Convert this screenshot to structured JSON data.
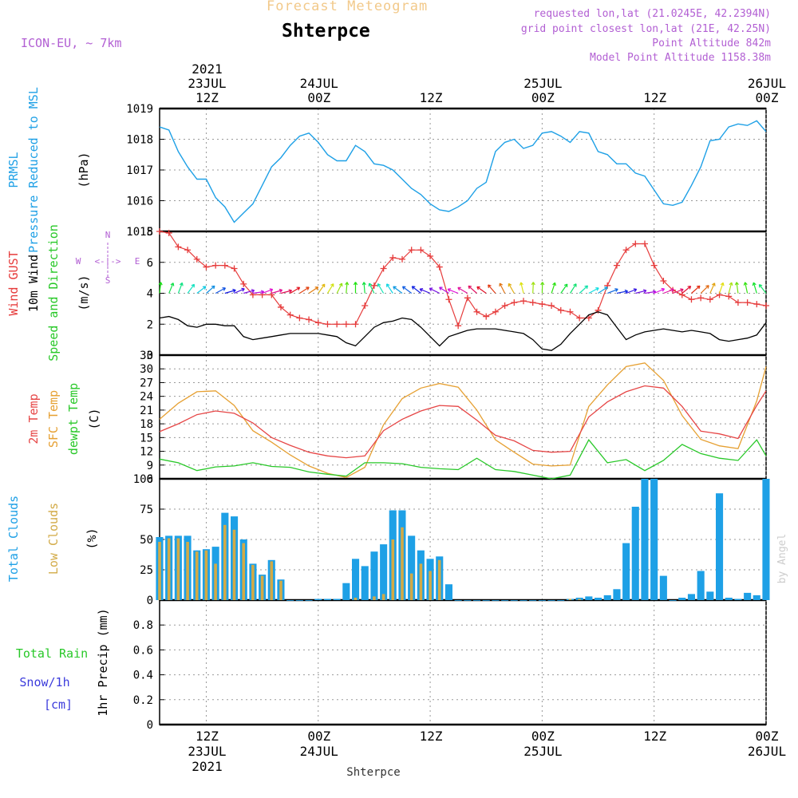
{
  "header": {
    "product": "Forecast Meteogram",
    "location": "Shterpce",
    "model": "ICON-EU, ~ 7km",
    "requested": "requested lon,lat (21.0245E, 42.2394N)",
    "gridpoint": "grid point closest lon,lat (21E, 42.25N)",
    "point_altitude": "Point Altitude 842m",
    "model_altitude": "Model Point Altitude 1158.38m",
    "signature": "by Angel",
    "footer_location": "Shterpce"
  },
  "colors": {
    "pressure": "#1ea0e6",
    "gust": "#e63c3c",
    "wind": "#000000",
    "temp": "#e64646",
    "sfc_temp": "#e6a032",
    "dewpt": "#28c828",
    "total_clouds": "#1ea0e6",
    "low_clouds": "#d2aa46",
    "rain": "#28c828",
    "snow": "#3c3cdc",
    "label_purple": "#b25fd3"
  },
  "time_axis": {
    "top": [
      {
        "line1": "2021",
        "line2": "23JUL",
        "line3": "12Z"
      },
      {
        "line1": "",
        "line2": "24JUL",
        "line3": "00Z"
      },
      {
        "line1": "",
        "line2": "",
        "line3": "12Z"
      },
      {
        "line1": "",
        "line2": "25JUL",
        "line3": "00Z"
      },
      {
        "line1": "",
        "line2": "",
        "line3": "12Z"
      },
      {
        "line1": "",
        "line2": "26JUL",
        "line3": "00Z"
      }
    ],
    "bottom": [
      {
        "line1": "12Z",
        "line2": "23JUL",
        "line3": "2021"
      },
      {
        "line1": "00Z",
        "line2": "24JUL",
        "line3": ""
      },
      {
        "line1": "12Z",
        "line2": "",
        "line3": ""
      },
      {
        "line1": "00Z",
        "line2": "25JUL",
        "line3": ""
      },
      {
        "line1": "12Z",
        "line2": "",
        "line3": ""
      },
      {
        "line1": "00Z",
        "line2": "26JUL",
        "line3": ""
      }
    ]
  },
  "chart_data": [
    {
      "type": "line",
      "ylabels": [
        "PRMSL",
        "Pressure Reduced to MSL"
      ],
      "unit": "(hPa)",
      "ylim": [
        1015,
        1019
      ],
      "yticks": [
        1015,
        1016,
        1017,
        1018,
        1019
      ],
      "x_hours": [
        7,
        72
      ],
      "series": [
        {
          "x": [
            7,
            8,
            9,
            10,
            11,
            12,
            13,
            14,
            15,
            16,
            17,
            18,
            19,
            20,
            21,
            22,
            23,
            24,
            25,
            26,
            27,
            28,
            29,
            30,
            31,
            32,
            33,
            34,
            35,
            36,
            37,
            38,
            39,
            40,
            41,
            42,
            43,
            44,
            45,
            46,
            47,
            48,
            49,
            50,
            51,
            52,
            53,
            54,
            55,
            56,
            57,
            58,
            59,
            60,
            61,
            62,
            63,
            64,
            65,
            66,
            67,
            68,
            69,
            70,
            71,
            72
          ],
          "values": [
            1018.4,
            1018.3,
            1017.6,
            1017.1,
            1016.7,
            1016.7,
            1016.1,
            1015.8,
            1015.3,
            1015.6,
            1015.9,
            1016.5,
            1017.1,
            1017.4,
            1017.8,
            1018.1,
            1018.2,
            1017.9,
            1017.5,
            1017.3,
            1017.3,
            1017.8,
            1017.6,
            1017.2,
            1017.15,
            1017.0,
            1016.7,
            1016.4,
            1016.2,
            1015.9,
            1015.7,
            1015.65,
            1015.8,
            1016.0,
            1016.4,
            1016.6,
            1017.6,
            1017.9,
            1018.0,
            1017.7,
            1017.8,
            1018.2,
            1018.25,
            1018.1,
            1017.9,
            1018.25,
            1018.2,
            1017.6,
            1017.5,
            1017.2,
            1017.2,
            1016.9,
            1016.8,
            1016.35,
            1015.9,
            1015.85,
            1015.95,
            1016.5,
            1017.1,
            1017.95,
            1018.0,
            1018.4,
            1018.5,
            1018.45,
            1018.6,
            1018.25
          ]
        }
      ]
    },
    {
      "type": "line",
      "ylabels": [
        "Wind GUST",
        "10m Wind",
        "Speed and Direction"
      ],
      "unit": "(m/s)",
      "compass": {
        "n": "N",
        "s": "S",
        "w": "W",
        "e": "E",
        "arrow": "<-|->"
      },
      "ylim": [
        0,
        8
      ],
      "yticks": [
        0,
        2,
        4,
        6,
        8
      ],
      "series": [
        {
          "name": "Wind GUST",
          "x": [
            7,
            8,
            9,
            10,
            11,
            12,
            13,
            14,
            15,
            16,
            17,
            18,
            19,
            20,
            21,
            22,
            23,
            24,
            25,
            26,
            27,
            28,
            29,
            30,
            31,
            32,
            33,
            34,
            35,
            36,
            37,
            38,
            39,
            40,
            41,
            42,
            43,
            44,
            45,
            46,
            47,
            48,
            49,
            50,
            51,
            52,
            53,
            54,
            55,
            56,
            57,
            58,
            59,
            60,
            61,
            62,
            63,
            64,
            65,
            66,
            67,
            68,
            69,
            70,
            71,
            72
          ],
          "values": [
            8.0,
            7.9,
            7.0,
            6.8,
            6.2,
            5.7,
            5.8,
            5.8,
            5.6,
            4.6,
            3.9,
            3.9,
            3.9,
            3.1,
            2.6,
            2.4,
            2.3,
            2.1,
            2.0,
            2.0,
            2.0,
            2.0,
            3.2,
            4.5,
            5.6,
            6.3,
            6.2,
            6.8,
            6.8,
            6.4,
            5.7,
            3.6,
            1.9,
            3.7,
            2.8,
            2.5,
            2.8,
            3.2,
            3.4,
            3.5,
            3.4,
            3.3,
            3.2,
            2.9,
            2.8,
            2.4,
            2.4,
            2.9,
            4.5,
            5.8,
            6.8,
            7.2,
            7.2,
            5.8,
            4.8,
            4.2,
            3.9,
            3.6,
            3.7,
            3.6,
            3.9,
            3.8,
            3.4,
            3.4,
            3.3,
            3.2
          ]
        },
        {
          "name": "10m Wind",
          "x": [
            7,
            8,
            9,
            10,
            11,
            12,
            13,
            14,
            15,
            16,
            17,
            18,
            19,
            20,
            21,
            22,
            23,
            24,
            25,
            26,
            27,
            28,
            29,
            30,
            31,
            32,
            33,
            34,
            35,
            36,
            37,
            38,
            39,
            40,
            41,
            42,
            43,
            44,
            45,
            46,
            47,
            48,
            49,
            50,
            51,
            52,
            53,
            54,
            55,
            56,
            57,
            58,
            59,
            60,
            61,
            62,
            63,
            64,
            65,
            66,
            67,
            68,
            69,
            70,
            71,
            72
          ],
          "values": [
            2.4,
            2.5,
            2.3,
            1.9,
            1.8,
            2.0,
            2.0,
            1.9,
            1.9,
            1.2,
            1.0,
            1.1,
            1.2,
            1.3,
            1.4,
            1.4,
            1.4,
            1.4,
            1.3,
            1.2,
            0.8,
            0.6,
            1.2,
            1.8,
            2.1,
            2.2,
            2.4,
            2.3,
            1.8,
            1.2,
            0.6,
            1.2,
            1.4,
            1.6,
            1.7,
            1.7,
            1.7,
            1.6,
            1.5,
            1.4,
            1.0,
            0.4,
            0.3,
            0.7,
            1.4,
            2.0,
            2.6,
            2.8,
            2.6,
            1.8,
            1.0,
            1.3,
            1.5,
            1.6,
            1.7,
            1.6,
            1.5,
            1.6,
            1.5,
            1.4,
            1.0,
            0.9,
            1.0,
            1.1,
            1.3,
            2.1
          ]
        },
        {
          "name": "Speed and Direction",
          "arrows": true
        }
      ]
    },
    {
      "type": "line",
      "ylabels": [
        "2m Temp",
        "SFC Temp",
        "dewpt Temp"
      ],
      "unit": "(C)",
      "ylim": [
        6,
        33
      ],
      "yticks": [
        6,
        9,
        12,
        15,
        18,
        21,
        24,
        27,
        30,
        33
      ],
      "series": [
        {
          "name": "2m Temp",
          "x": [
            7,
            9,
            11,
            13,
            15,
            17,
            19,
            21,
            23,
            25,
            27,
            29,
            31,
            33,
            35,
            37,
            39,
            41,
            43,
            45,
            47,
            49,
            51,
            53,
            55,
            57,
            59,
            61,
            63,
            65,
            67,
            69,
            71,
            72
          ],
          "values": [
            16.3,
            18.0,
            20.0,
            20.8,
            20.3,
            18.2,
            15.0,
            13.3,
            11.8,
            11.0,
            10.6,
            11.0,
            16.5,
            19.0,
            20.8,
            22.0,
            21.8,
            18.8,
            15.5,
            14.3,
            12.2,
            11.8,
            12.0,
            19.5,
            22.8,
            25.0,
            26.3,
            25.8,
            21.8,
            16.4,
            15.8,
            14.8,
            22.0,
            25.2
          ]
        },
        {
          "name": "SFC Temp",
          "x": [
            7,
            9,
            11,
            13,
            15,
            17,
            19,
            21,
            23,
            25,
            27,
            29,
            31,
            33,
            35,
            37,
            39,
            41,
            43,
            45,
            47,
            49,
            51,
            53,
            55,
            57,
            59,
            61,
            63,
            65,
            67,
            69,
            71,
            72
          ],
          "values": [
            19.0,
            22.5,
            25.0,
            25.2,
            22.0,
            16.5,
            14.0,
            11.2,
            8.8,
            7.2,
            6.3,
            8.5,
            17.8,
            23.5,
            25.8,
            26.8,
            26.0,
            21.0,
            14.5,
            11.8,
            9.2,
            8.8,
            9.0,
            21.8,
            26.5,
            30.5,
            31.3,
            27.5,
            19.8,
            14.6,
            13.2,
            12.6,
            23.0,
            30.5
          ]
        },
        {
          "name": "dewpt Temp",
          "x": [
            7,
            9,
            11,
            13,
            15,
            17,
            19,
            21,
            23,
            25,
            27,
            29,
            31,
            33,
            35,
            37,
            39,
            41,
            43,
            45,
            47,
            49,
            51,
            53,
            55,
            57,
            59,
            61,
            63,
            65,
            67,
            69,
            71,
            72
          ],
          "values": [
            10.3,
            9.5,
            7.8,
            8.6,
            8.8,
            9.5,
            8.7,
            8.5,
            7.5,
            7.0,
            6.6,
            9.5,
            9.5,
            9.3,
            8.5,
            8.2,
            8.0,
            10.5,
            8.0,
            7.6,
            6.8,
            6.0,
            6.8,
            14.5,
            9.5,
            10.2,
            7.8,
            10.0,
            13.5,
            11.5,
            10.5,
            10.0,
            14.5,
            11.0
          ]
        }
      ]
    },
    {
      "type": "bar",
      "ylabels": [
        "Total Clouds",
        "Low Clouds"
      ],
      "unit": "(%)",
      "ylim": [
        0,
        100
      ],
      "yticks": [
        0,
        25,
        50,
        75,
        100
      ],
      "series": [
        {
          "name": "Total Clouds",
          "x": [
            7,
            8,
            9,
            10,
            11,
            12,
            13,
            14,
            15,
            16,
            17,
            18,
            19,
            20,
            21,
            22,
            23,
            24,
            25,
            26,
            27,
            28,
            29,
            30,
            31,
            32,
            33,
            34,
            35,
            36,
            37,
            38,
            39,
            40,
            41,
            42,
            43,
            44,
            45,
            46,
            47,
            48,
            49,
            50,
            51,
            52,
            53,
            54,
            55,
            56,
            57,
            58,
            59,
            60,
            61,
            62,
            63,
            64,
            65,
            66,
            67,
            68,
            69,
            70,
            71,
            72
          ],
          "values": [
            52,
            53,
            53,
            53,
            41,
            42,
            44,
            72,
            69,
            50,
            30,
            21,
            33,
            17,
            0,
            0,
            0,
            1,
            1,
            1,
            14,
            34,
            28,
            40,
            46,
            74,
            74,
            53,
            41,
            34,
            36,
            13,
            0,
            0,
            0,
            0,
            0,
            0,
            0,
            0,
            0,
            0,
            0,
            0,
            1,
            2,
            3,
            2,
            4,
            9,
            47,
            77,
            100,
            100,
            20,
            0,
            2,
            5,
            24,
            7,
            88,
            2,
            1,
            6,
            4,
            100
          ]
        },
        {
          "name": "Low Clouds",
          "x": [
            7,
            8,
            9,
            10,
            11,
            12,
            13,
            14,
            15,
            16,
            17,
            18,
            19,
            20,
            21,
            22,
            23,
            24,
            25,
            26,
            27,
            28,
            29,
            30,
            31,
            32,
            33,
            34,
            35,
            36,
            37,
            38,
            39,
            40,
            41,
            42,
            43,
            44,
            45,
            46,
            47,
            48,
            49,
            50,
            51,
            52,
            53,
            54,
            55,
            56,
            57,
            58,
            59,
            60,
            61,
            62,
            63,
            64,
            65,
            66,
            67,
            68,
            69,
            70,
            71,
            72
          ],
          "values": [
            48,
            51,
            51,
            48,
            40,
            41,
            30,
            62,
            58,
            47,
            29,
            20,
            32,
            16,
            0,
            0,
            0,
            0,
            0,
            0,
            0,
            2,
            0,
            3,
            5,
            50,
            60,
            22,
            30,
            24,
            33,
            0,
            0,
            0,
            0,
            0,
            0,
            0,
            0,
            0,
            0,
            0,
            0,
            0,
            1,
            1,
            0,
            0,
            0,
            0,
            0,
            0,
            0,
            0,
            0,
            0,
            0,
            0,
            0,
            0,
            0,
            0,
            0,
            0,
            0,
            0
          ]
        }
      ]
    },
    {
      "type": "bar",
      "ylabels": [
        "Total Rain",
        "Snow/1h",
        "[cm]"
      ],
      "unit": "1hr Precip (mm)",
      "ylim": [
        0,
        1.0
      ],
      "yticks": [
        0,
        0.2,
        0.4,
        0.6,
        0.8
      ],
      "series": [
        {
          "name": "Total Rain",
          "x": [
            7,
            72
          ],
          "values": [
            0,
            0
          ]
        },
        {
          "name": "Snow/1h",
          "x": [
            7,
            72
          ],
          "values": [
            0,
            0
          ]
        }
      ]
    }
  ]
}
